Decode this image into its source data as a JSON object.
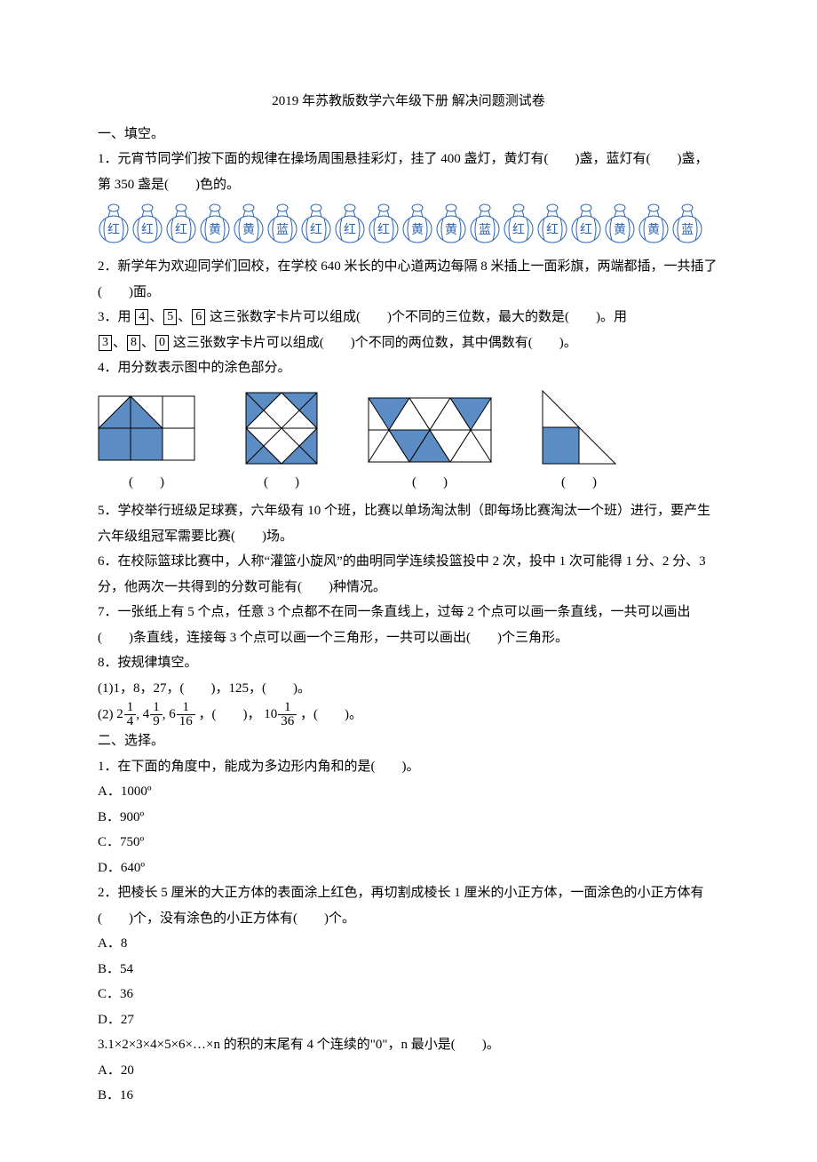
{
  "title": "2019 年苏教版数学六年级下册 解决问题测试卷",
  "sec1": {
    "heading": "一、填空。",
    "q1": "1．元宵节同学们按下面的规律在操场周围悬挂彩灯，挂了 400 盏灯，黄灯有(　　)盏，蓝灯有(　　)盏，第 350 盏是(　　)色的。",
    "lantern_pattern": [
      "红",
      "红",
      "红",
      "黄",
      "黄",
      "蓝",
      "红",
      "红",
      "红",
      "黄",
      "黄",
      "蓝",
      "红",
      "红",
      "红",
      "黄",
      "黄",
      "蓝"
    ],
    "lantern_style": {
      "stroke": "#2a62b0",
      "fill": "#ffffff",
      "text_color": "#2a62b0",
      "font_size": 14
    },
    "q2": "2．新学年为欢迎同学们回校，在学校 640 米长的中心道两边每隔 8 米插上一面彩旗，两端都插，一共插了(　　)面。",
    "q3a": "3．用",
    "q3_cards1": [
      "4",
      "5",
      "6"
    ],
    "q3b": "这三张数字卡片可以组成(　　)个不同的三位数，最大的数是(　　)。用",
    "q3_cards2": [
      "3",
      "8",
      "0"
    ],
    "q3c": "这三张数字卡片可以组成(　　)个不同的两位数，其中偶数有(　　)。",
    "q4": "4．用分数表示图中的涂色部分。",
    "figcap": "(　　)",
    "shape_colors": {
      "fill": "#5b8cc4",
      "stroke": "#000000",
      "bg": "#ffffff"
    },
    "q5": "5．学校举行班级足球赛，六年级有 10 个班，比赛以单场淘汰制（即每场比赛淘汰一个班）进行，要产生六年级组冠军需要比赛(　　)场。",
    "q6": "6．在校际篮球比赛中，人称“灌篮小旋风”的曲明同学连续投篮投中 2 次，投中 1 次可能得 1 分、2 分、3 分，他两次一共得到的分数可能有(　　)种情况。",
    "q7": "7．一张纸上有 5 个点，任意 3 个点都不在同一条直线上，过每 2 个点可以画一条直线，一共可以画出(　　)条直线，连接每 3 个点可以画一个三角形，一共可以画出(　　)个三角形。",
    "q8": "8．按规律填空。",
    "q8_1": "(1)1，8，27，(　　)，125，(　　)。",
    "q8_2_prefix": "(2) ",
    "q8_2_mixed": [
      {
        "w": "2",
        "n": "1",
        "d": "4"
      },
      {
        "w": "4",
        "n": "1",
        "d": "9"
      },
      {
        "w": "6",
        "n": "1",
        "d": "16"
      }
    ],
    "q8_2_mid": "，(　　)，",
    "q8_2_last": {
      "w": "10",
      "n": "1",
      "d": "36"
    },
    "q8_2_tail": "，(　　)。"
  },
  "sec2": {
    "heading": "二、选择。",
    "q1": "1．在下面的角度中，能成为多边形内角和的是(　　)。",
    "q1_opts": [
      "A．1000º",
      "B．900º",
      "C．750º",
      "D．640º"
    ],
    "q2": "2．把棱长 5 厘米的大正方体的表面涂上红色，再切割成棱长 1 厘米的小正方体，一面涂色的小正方体有(　　)个，没有涂色的小正方体有(　　)个。",
    "q2_opts": [
      "A．8",
      "B．54",
      "C．36",
      "D．27"
    ],
    "q3": "3.1×2×3×4×5×6×…×n 的积的末尾有 4 个连续的\"0\"，n 最小是(　　)。",
    "q3_opts": [
      "A．20",
      "B．16"
    ]
  }
}
